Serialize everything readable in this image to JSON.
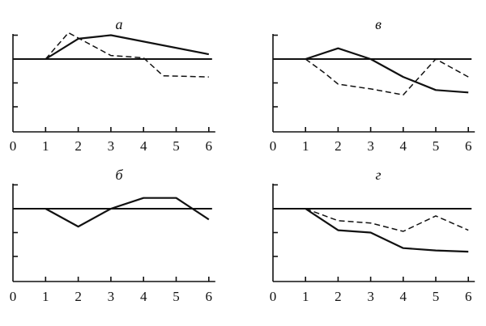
{
  "chart_data": [
    {
      "type": "line",
      "title": "а",
      "x_ticks": [
        "0",
        "1",
        "2",
        "3",
        "4",
        "5",
        "6"
      ],
      "baseline": 0,
      "ylim": [
        -3,
        1
      ],
      "series": [
        {
          "style": "solid",
          "points": [
            [
              1,
              0
            ],
            [
              2,
              0.85
            ],
            [
              3,
              1.0
            ],
            [
              6,
              0.2
            ]
          ]
        },
        {
          "style": "dashed",
          "points": [
            [
              1,
              0
            ],
            [
              1.7,
              1.1
            ],
            [
              3,
              0.15
            ],
            [
              4,
              0.05
            ],
            [
              4.6,
              -0.7
            ],
            [
              6,
              -0.75
            ]
          ]
        }
      ]
    },
    {
      "type": "line",
      "title": "в",
      "x_ticks": [
        "0",
        "1",
        "2",
        "3",
        "4",
        "5",
        "6"
      ],
      "baseline": 0,
      "ylim": [
        -3,
        1
      ],
      "series": [
        {
          "style": "solid",
          "points": [
            [
              1,
              0
            ],
            [
              2,
              0.45
            ],
            [
              3,
              0
            ],
            [
              4,
              -0.75
            ],
            [
              5,
              -1.3
            ],
            [
              6,
              -1.4
            ]
          ]
        },
        {
          "style": "dashed",
          "points": [
            [
              1,
              0
            ],
            [
              1.6,
              -0.6
            ],
            [
              2,
              -1.05
            ],
            [
              3,
              -1.25
            ],
            [
              4,
              -1.5
            ],
            [
              5,
              0
            ],
            [
              6,
              -0.75
            ]
          ]
        }
      ]
    },
    {
      "type": "line",
      "title": "б",
      "x_ticks": [
        "0",
        "1",
        "2",
        "3",
        "4",
        "5",
        "6"
      ],
      "baseline": 0,
      "ylim": [
        -3,
        1
      ],
      "series": [
        {
          "style": "solid",
          "points": [
            [
              1,
              0
            ],
            [
              2,
              -0.75
            ],
            [
              3,
              0
            ],
            [
              4,
              0.45
            ],
            [
              5,
              0.45
            ],
            [
              6,
              -0.45
            ]
          ]
        }
      ]
    },
    {
      "type": "line",
      "title": "г",
      "x_ticks": [
        "0",
        "1",
        "2",
        "3",
        "4",
        "5",
        "6"
      ],
      "baseline": 0,
      "ylim": [
        -3,
        1
      ],
      "series": [
        {
          "style": "solid",
          "points": [
            [
              1,
              0
            ],
            [
              2,
              -0.9
            ],
            [
              3,
              -1.0
            ],
            [
              4,
              -1.65
            ],
            [
              5,
              -1.75
            ],
            [
              6,
              -1.8
            ]
          ]
        },
        {
          "style": "dashed",
          "points": [
            [
              1,
              0
            ],
            [
              2,
              -0.5
            ],
            [
              3,
              -0.6
            ],
            [
              4,
              -0.95
            ],
            [
              5,
              -0.3
            ],
            [
              6,
              -0.9
            ]
          ]
        }
      ]
    }
  ]
}
